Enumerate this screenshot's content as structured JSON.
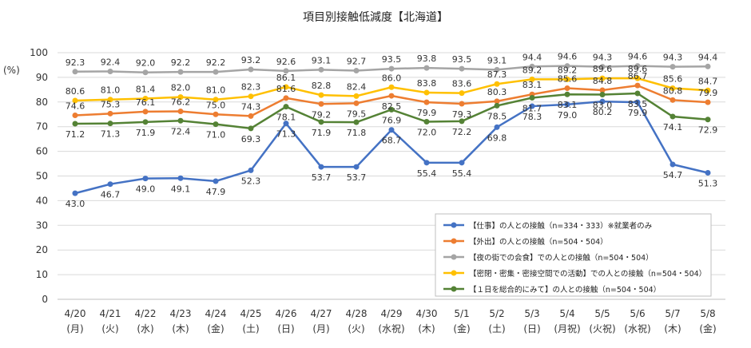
{
  "chart_data": {
    "type": "line",
    "title": "項目別接触低減度【北海道】",
    "ylabel": "(%)",
    "ylim": [
      0,
      100
    ],
    "yticks": [
      0,
      10,
      20,
      30,
      40,
      50,
      60,
      70,
      80,
      90,
      100
    ],
    "grid": true,
    "legend_position": "bottom-right",
    "categories": [
      {
        "date": "4/20",
        "day": "(月)"
      },
      {
        "date": "4/21",
        "day": "(火)"
      },
      {
        "date": "4/22",
        "day": "(水)"
      },
      {
        "date": "4/23",
        "day": "(木)"
      },
      {
        "date": "4/24",
        "day": "(金)"
      },
      {
        "date": "4/25",
        "day": "(土)"
      },
      {
        "date": "4/26",
        "day": "(日)"
      },
      {
        "date": "4/27",
        "day": "(月)"
      },
      {
        "date": "4/28",
        "day": "(火)"
      },
      {
        "date": "4/29",
        "day": "(水祝)"
      },
      {
        "date": "4/30",
        "day": "(木)"
      },
      {
        "date": "5/1",
        "day": "(金)"
      },
      {
        "date": "5/2",
        "day": "(土)"
      },
      {
        "date": "5/3",
        "day": "(日)"
      },
      {
        "date": "5/4",
        "day": "(月祝)"
      },
      {
        "date": "5/5",
        "day": "(火祝)"
      },
      {
        "date": "5/6",
        "day": "(水祝)"
      },
      {
        "date": "5/7",
        "day": "(木)"
      },
      {
        "date": "5/8",
        "day": "(金)"
      }
    ],
    "series": [
      {
        "name": "【仕事】の人との接触（n=334・333）※就業者のみ",
        "color": "#4472C4",
        "values": [
          43.0,
          46.7,
          49.0,
          49.1,
          47.9,
          52.3,
          71.3,
          53.7,
          53.7,
          68.7,
          55.4,
          55.4,
          69.8,
          78.3,
          79.0,
          80.2,
          79.9,
          54.7,
          51.3
        ],
        "labels": [
          "43.0",
          "46.7",
          "49.0",
          "49.1",
          "47.9",
          "52.3",
          "71.3",
          "53.7",
          "53.7",
          "68.7",
          "55.4",
          "55.4",
          "69.8",
          "78.3",
          "79.0",
          "80.2",
          "79.9",
          "54.7",
          "51.3"
        ],
        "label_pos": [
          "below",
          "below",
          "below",
          "below",
          "below",
          "below",
          "below",
          "below",
          "below",
          "below",
          "below",
          "below",
          "below",
          "below",
          "below",
          "below",
          "below",
          "below",
          "below"
        ]
      },
      {
        "name": "【外出】の人との接触（n=504・504）",
        "color": "#ED7D31",
        "values": [
          74.6,
          75.3,
          76.1,
          76.2,
          75.0,
          74.3,
          81.6,
          79.2,
          79.5,
          82.5,
          79.9,
          79.3,
          80.3,
          83.1,
          85.6,
          84.8,
          86.7,
          80.8,
          79.9
        ],
        "labels": [
          "74.6",
          "75.3",
          "76.1",
          "76.2",
          "75.0",
          "74.3",
          "81.6",
          "79.2",
          "79.5",
          "82.5",
          "79.9",
          "79.3",
          "80.3",
          "83.1",
          "85.6",
          "84.8",
          "86.7",
          "80.8",
          "79.9"
        ],
        "label_pos": [
          "above",
          "above",
          "above",
          "above",
          "above",
          "above",
          "above",
          "below",
          "below",
          "below",
          "below",
          "below",
          "above",
          "above",
          "above",
          "above",
          "above",
          "above",
          "above"
        ]
      },
      {
        "name": "【夜の街での会食】での人との接触（n=504・504）",
        "color": "#A5A5A5",
        "values": [
          92.3,
          92.4,
          92.0,
          92.2,
          92.2,
          93.2,
          92.6,
          93.1,
          92.7,
          93.5,
          93.8,
          93.5,
          93.1,
          94.4,
          94.6,
          94.3,
          94.6,
          94.3,
          94.4
        ],
        "labels": [
          "92.3",
          "92.4",
          "92.0",
          "92.2",
          "92.2",
          "93.2",
          "92.6",
          "93.1",
          "92.7",
          "93.5",
          "93.8",
          "93.5",
          "93.1",
          "94.4",
          "94.6",
          "94.3",
          "94.6",
          "94.3",
          "94.4"
        ],
        "label_pos": [
          "above",
          "above",
          "above",
          "above",
          "above",
          "above",
          "above",
          "above",
          "above",
          "above",
          "above",
          "above",
          "above",
          "above",
          "above",
          "above",
          "above",
          "above",
          "above"
        ]
      },
      {
        "name": "【密閉・密集・密接空間での活動】での人との接触（n=504・504）",
        "color": "#FFC000",
        "values": [
          80.6,
          81.0,
          81.4,
          82.0,
          81.0,
          82.3,
          86.1,
          82.8,
          82.4,
          86.0,
          83.8,
          83.6,
          87.3,
          89.2,
          89.2,
          89.6,
          89.6,
          85.6,
          84.7
        ],
        "labels": [
          "80.6",
          "81.0",
          "81.4",
          "82.0",
          "81.0",
          "82.3",
          "86.1",
          "82.8",
          "82.4",
          "86.0",
          "83.8",
          "83.6",
          "87.3",
          "89.2",
          "89.2",
          "89.6",
          "89.6",
          "85.6",
          "84.7"
        ],
        "label_pos": [
          "above",
          "above",
          "above",
          "above",
          "above",
          "above",
          "above",
          "above",
          "above",
          "above",
          "above",
          "above",
          "above",
          "above",
          "above",
          "above",
          "above",
          "above",
          "above"
        ]
      },
      {
        "name": "【１日を総合的にみて】の人との接触（n=504・504）",
        "color": "#548235",
        "values": [
          71.2,
          71.3,
          71.9,
          72.4,
          71.0,
          69.3,
          78.1,
          71.9,
          71.8,
          76.9,
          72.0,
          72.2,
          78.5,
          81.7,
          83.1,
          83.0,
          83.5,
          74.1,
          72.9
        ],
        "labels": [
          "71.2",
          "71.3",
          "71.9",
          "72.4",
          "71.0",
          "69.3",
          "78.1",
          "71.9",
          "71.8",
          "76.9",
          "72.0",
          "72.2",
          "78.5",
          "81.7",
          "83.1",
          "83.0",
          "83.5",
          "74.1",
          "72.9"
        ],
        "label_pos": [
          "below",
          "below",
          "below",
          "below",
          "below",
          "below",
          "below",
          "below",
          "below",
          "below",
          "below",
          "below",
          "below",
          "below",
          "below",
          "below",
          "below",
          "below",
          "below"
        ]
      }
    ]
  }
}
